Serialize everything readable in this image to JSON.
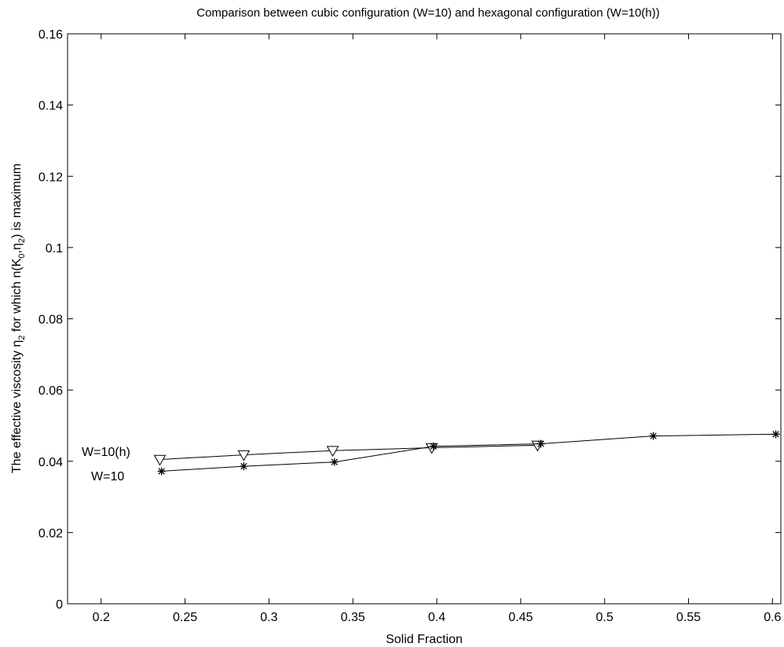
{
  "chart_data": {
    "type": "line",
    "title": "Comparison between cubic configuration (W=10) and hexagonal configuration (W=10(h))",
    "xlabel": "Solid Fraction",
    "ylabel_parts": {
      "p1": "The effective viscosity η",
      "s1": "2",
      "p2": " for which n(K",
      "s2": "0",
      "p3": ",η",
      "s3": "2",
      "p4": ") is maximum"
    },
    "xlim": [
      0.18,
      0.605
    ],
    "ylim": [
      0,
      0.16
    ],
    "xticks": [
      0.2,
      0.25,
      0.3,
      0.35,
      0.4,
      0.45,
      0.5,
      0.55,
      0.6
    ],
    "xtick_labels": [
      "0.2",
      "0.25",
      "0.3",
      "0.35",
      "0.4",
      "0.45",
      "0.5",
      "0.55",
      "0.6"
    ],
    "yticks": [
      0,
      0.02,
      0.04,
      0.06,
      0.08,
      0.1,
      0.12,
      0.14,
      0.16
    ],
    "ytick_labels": [
      "0",
      "0.02",
      "0.04",
      "0.06",
      "0.08",
      "0.1",
      "0.12",
      "0.14",
      "0.16"
    ],
    "grid": false,
    "series": [
      {
        "name": "W=10(h)",
        "marker": "triangle-down",
        "x": [
          0.235,
          0.285,
          0.338,
          0.397,
          0.46
        ],
        "y": [
          0.0405,
          0.0418,
          0.043,
          0.0438,
          0.0445
        ]
      },
      {
        "name": "W=10",
        "marker": "star",
        "x": [
          0.236,
          0.285,
          0.339,
          0.398,
          0.462,
          0.529,
          0.602
        ],
        "y": [
          0.0372,
          0.0386,
          0.0398,
          0.0442,
          0.0449,
          0.0471,
          0.0476
        ]
      }
    ],
    "annotations": [
      "W=10(h)",
      "W=10"
    ]
  }
}
